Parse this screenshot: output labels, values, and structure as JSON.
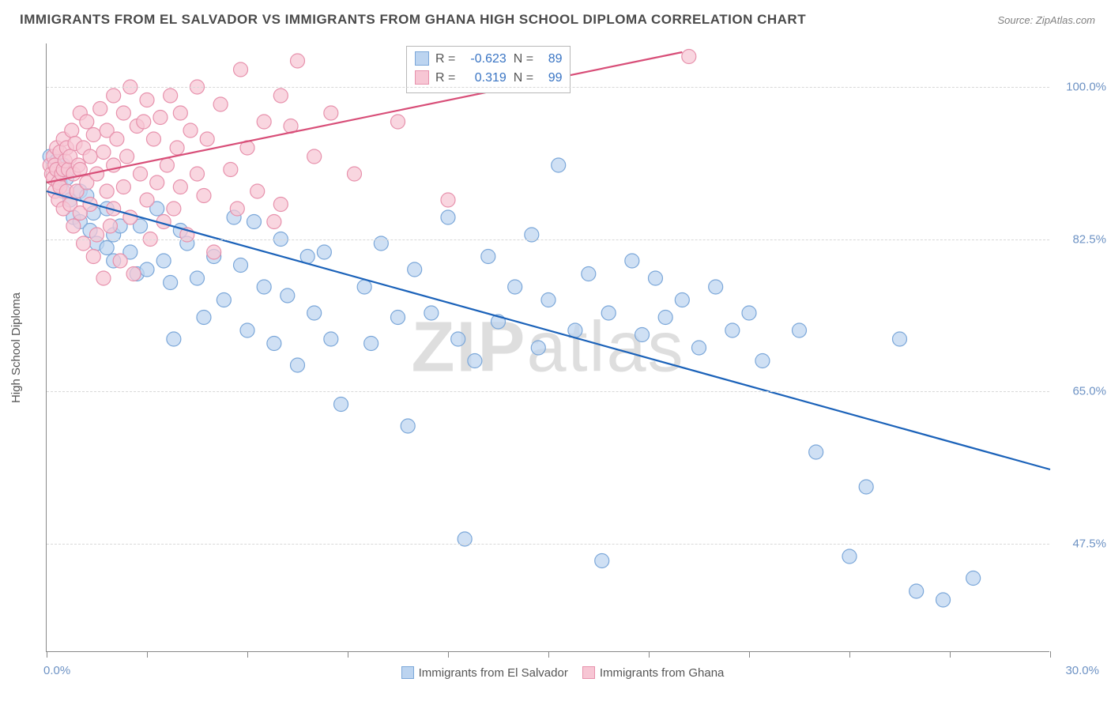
{
  "title": "IMMIGRANTS FROM EL SALVADOR VS IMMIGRANTS FROM GHANA HIGH SCHOOL DIPLOMA CORRELATION CHART",
  "source": "Source: ZipAtlas.com",
  "watermark": "ZIPatlas",
  "y_axis_label": "High School Diploma",
  "chart": {
    "type": "scatter-with-regression",
    "background_color": "#ffffff",
    "grid_color": "#d8d8d8",
    "axis_color": "#888888",
    "axis_label_color": "#555555",
    "tick_label_color": "#6d92c4",
    "tick_label_fontsize": 15,
    "title_fontsize": 17,
    "title_color": "#4a4a4a",
    "xlim": [
      0,
      30
    ],
    "ylim": [
      35,
      105
    ],
    "x_tick_positions": [
      0,
      3,
      6,
      9,
      12,
      15,
      18,
      21,
      24,
      27,
      30
    ],
    "x_first_label": "0.0%",
    "x_last_label": "30.0%",
    "y_ticks": [
      {
        "value": 47.5,
        "label": "47.5%"
      },
      {
        "value": 65.0,
        "label": "65.0%"
      },
      {
        "value": 82.5,
        "label": "82.5%"
      },
      {
        "value": 100.0,
        "label": "100.0%"
      }
    ],
    "series": [
      {
        "name": "Immigrants from El Salvador",
        "color_fill": "#bcd4f0",
        "color_stroke": "#7ba7d9",
        "marker_radius": 9,
        "marker_opacity": 0.72,
        "regression": {
          "x1": 0,
          "y1": 88,
          "x2": 30,
          "y2": 56,
          "color": "#1b62b9",
          "width": 2.2
        },
        "R": -0.623,
        "N": 89,
        "points": [
          [
            0.1,
            92
          ],
          [
            0.3,
            91.5
          ],
          [
            0.3,
            90.5
          ],
          [
            0.4,
            90
          ],
          [
            0.4,
            89
          ],
          [
            0.5,
            91
          ],
          [
            0.5,
            88
          ],
          [
            0.6,
            89.5
          ],
          [
            0.7,
            87
          ],
          [
            0.8,
            85
          ],
          [
            1.0,
            88
          ],
          [
            1.0,
            84.5
          ],
          [
            1.2,
            87.5
          ],
          [
            1.3,
            83.5
          ],
          [
            1.4,
            85.5
          ],
          [
            1.5,
            82
          ],
          [
            1.8,
            86
          ],
          [
            1.8,
            81.5
          ],
          [
            2.0,
            83
          ],
          [
            2.0,
            80
          ],
          [
            2.2,
            84
          ],
          [
            2.5,
            81
          ],
          [
            2.7,
            78.5
          ],
          [
            2.8,
            84
          ],
          [
            3.0,
            79
          ],
          [
            3.3,
            86
          ],
          [
            3.5,
            80
          ],
          [
            3.7,
            77.5
          ],
          [
            3.8,
            71
          ],
          [
            4.0,
            83.5
          ],
          [
            4.2,
            82
          ],
          [
            4.5,
            78
          ],
          [
            4.7,
            73.5
          ],
          [
            5.0,
            80.5
          ],
          [
            5.3,
            75.5
          ],
          [
            5.6,
            85
          ],
          [
            5.8,
            79.5
          ],
          [
            6.0,
            72
          ],
          [
            6.2,
            84.5
          ],
          [
            6.5,
            77
          ],
          [
            6.8,
            70.5
          ],
          [
            7.0,
            82.5
          ],
          [
            7.2,
            76
          ],
          [
            7.5,
            68
          ],
          [
            7.8,
            80.5
          ],
          [
            8.0,
            74
          ],
          [
            8.3,
            81
          ],
          [
            8.5,
            71
          ],
          [
            8.8,
            63.5
          ],
          [
            9.5,
            77
          ],
          [
            9.7,
            70.5
          ],
          [
            10.0,
            82
          ],
          [
            10.5,
            73.5
          ],
          [
            10.8,
            61
          ],
          [
            11.0,
            79
          ],
          [
            11.5,
            74
          ],
          [
            12.0,
            85
          ],
          [
            12.3,
            71
          ],
          [
            12.5,
            48
          ],
          [
            12.8,
            68.5
          ],
          [
            13.2,
            80.5
          ],
          [
            13.5,
            73
          ],
          [
            14.0,
            77
          ],
          [
            14.5,
            83
          ],
          [
            14.7,
            70
          ],
          [
            15.0,
            75.5
          ],
          [
            15.3,
            91
          ],
          [
            15.8,
            72
          ],
          [
            16.2,
            78.5
          ],
          [
            16.6,
            45.5
          ],
          [
            16.8,
            74
          ],
          [
            17.5,
            80
          ],
          [
            17.8,
            71.5
          ],
          [
            18.2,
            78
          ],
          [
            18.5,
            73.5
          ],
          [
            19.0,
            75.5
          ],
          [
            19.5,
            70
          ],
          [
            20.0,
            77
          ],
          [
            20.5,
            72
          ],
          [
            21.0,
            74
          ],
          [
            21.4,
            68.5
          ],
          [
            22.5,
            72
          ],
          [
            23.0,
            58
          ],
          [
            24.0,
            46
          ],
          [
            24.5,
            54
          ],
          [
            25.5,
            71
          ],
          [
            26.0,
            42
          ],
          [
            26.8,
            41
          ],
          [
            27.7,
            43.5
          ]
        ]
      },
      {
        "name": "Immigrants from Ghana",
        "color_fill": "#f7c6d4",
        "color_stroke": "#e791ac",
        "marker_radius": 9,
        "marker_opacity": 0.72,
        "regression": {
          "x1": 0,
          "y1": 89,
          "x2": 19,
          "y2": 104,
          "color": "#d84e78",
          "width": 2.2
        },
        "R": 0.319,
        "N": 99,
        "points": [
          [
            0.1,
            91
          ],
          [
            0.15,
            90
          ],
          [
            0.2,
            92
          ],
          [
            0.2,
            89.5
          ],
          [
            0.25,
            91
          ],
          [
            0.25,
            88
          ],
          [
            0.3,
            93
          ],
          [
            0.3,
            90.5
          ],
          [
            0.35,
            89
          ],
          [
            0.35,
            87
          ],
          [
            0.4,
            92.5
          ],
          [
            0.4,
            88.5
          ],
          [
            0.45,
            90
          ],
          [
            0.5,
            94
          ],
          [
            0.5,
            90.5
          ],
          [
            0.5,
            86
          ],
          [
            0.55,
            91.5
          ],
          [
            0.6,
            93
          ],
          [
            0.6,
            88
          ],
          [
            0.65,
            90.5
          ],
          [
            0.7,
            92
          ],
          [
            0.7,
            86.5
          ],
          [
            0.75,
            95
          ],
          [
            0.8,
            90
          ],
          [
            0.8,
            84
          ],
          [
            0.85,
            93.5
          ],
          [
            0.9,
            88
          ],
          [
            0.95,
            91
          ],
          [
            1.0,
            97
          ],
          [
            1.0,
            90.5
          ],
          [
            1.0,
            85.5
          ],
          [
            1.1,
            93
          ],
          [
            1.1,
            82
          ],
          [
            1.2,
            96
          ],
          [
            1.2,
            89
          ],
          [
            1.3,
            92
          ],
          [
            1.3,
            86.5
          ],
          [
            1.4,
            94.5
          ],
          [
            1.4,
            80.5
          ],
          [
            1.5,
            90
          ],
          [
            1.5,
            83
          ],
          [
            1.6,
            97.5
          ],
          [
            1.7,
            92.5
          ],
          [
            1.7,
            78
          ],
          [
            1.8,
            88
          ],
          [
            1.8,
            95
          ],
          [
            1.9,
            84
          ],
          [
            2.0,
            99
          ],
          [
            2.0,
            91
          ],
          [
            2.0,
            86
          ],
          [
            2.1,
            94
          ],
          [
            2.2,
            80
          ],
          [
            2.3,
            97
          ],
          [
            2.3,
            88.5
          ],
          [
            2.4,
            92
          ],
          [
            2.5,
            85
          ],
          [
            2.5,
            100
          ],
          [
            2.6,
            78.5
          ],
          [
            2.7,
            95.5
          ],
          [
            2.8,
            90
          ],
          [
            2.9,
            96
          ],
          [
            3.0,
            87
          ],
          [
            3.0,
            98.5
          ],
          [
            3.1,
            82.5
          ],
          [
            3.2,
            94
          ],
          [
            3.3,
            89
          ],
          [
            3.4,
            96.5
          ],
          [
            3.5,
            84.5
          ],
          [
            3.6,
            91
          ],
          [
            3.7,
            99
          ],
          [
            3.8,
            86
          ],
          [
            3.9,
            93
          ],
          [
            4.0,
            88.5
          ],
          [
            4.0,
            97
          ],
          [
            4.2,
            83
          ],
          [
            4.3,
            95
          ],
          [
            4.5,
            90
          ],
          [
            4.5,
            100
          ],
          [
            4.7,
            87.5
          ],
          [
            4.8,
            94
          ],
          [
            5.0,
            81
          ],
          [
            5.2,
            98
          ],
          [
            5.5,
            90.5
          ],
          [
            5.7,
            86
          ],
          [
            5.8,
            102
          ],
          [
            6.0,
            93
          ],
          [
            6.3,
            88
          ],
          [
            6.5,
            96
          ],
          [
            6.8,
            84.5
          ],
          [
            7.0,
            99
          ],
          [
            7.0,
            86.5
          ],
          [
            7.3,
            95.5
          ],
          [
            7.5,
            103
          ],
          [
            8.0,
            92
          ],
          [
            8.5,
            97
          ],
          [
            9.2,
            90
          ],
          [
            10.5,
            96
          ],
          [
            12.0,
            87
          ],
          [
            19.2,
            103.5
          ]
        ]
      }
    ],
    "legend_bottom": [
      {
        "swatch_fill": "#bcd4f0",
        "swatch_stroke": "#7ba7d9",
        "label": "Immigrants from El Salvador"
      },
      {
        "swatch_fill": "#f7c6d4",
        "swatch_stroke": "#e791ac",
        "label": "Immigrants from Ghana"
      }
    ],
    "stats_box": {
      "border_color": "#b8b8b8",
      "rows": [
        {
          "swatch_fill": "#bcd4f0",
          "swatch_stroke": "#7ba7d9",
          "R_label": "R =",
          "R": "-0.623",
          "N_label": "N =",
          "N": "89"
        },
        {
          "swatch_fill": "#f7c6d4",
          "swatch_stroke": "#e791ac",
          "R_label": "R =",
          "R": "0.319",
          "N_label": "N =",
          "N": "99"
        }
      ]
    }
  }
}
